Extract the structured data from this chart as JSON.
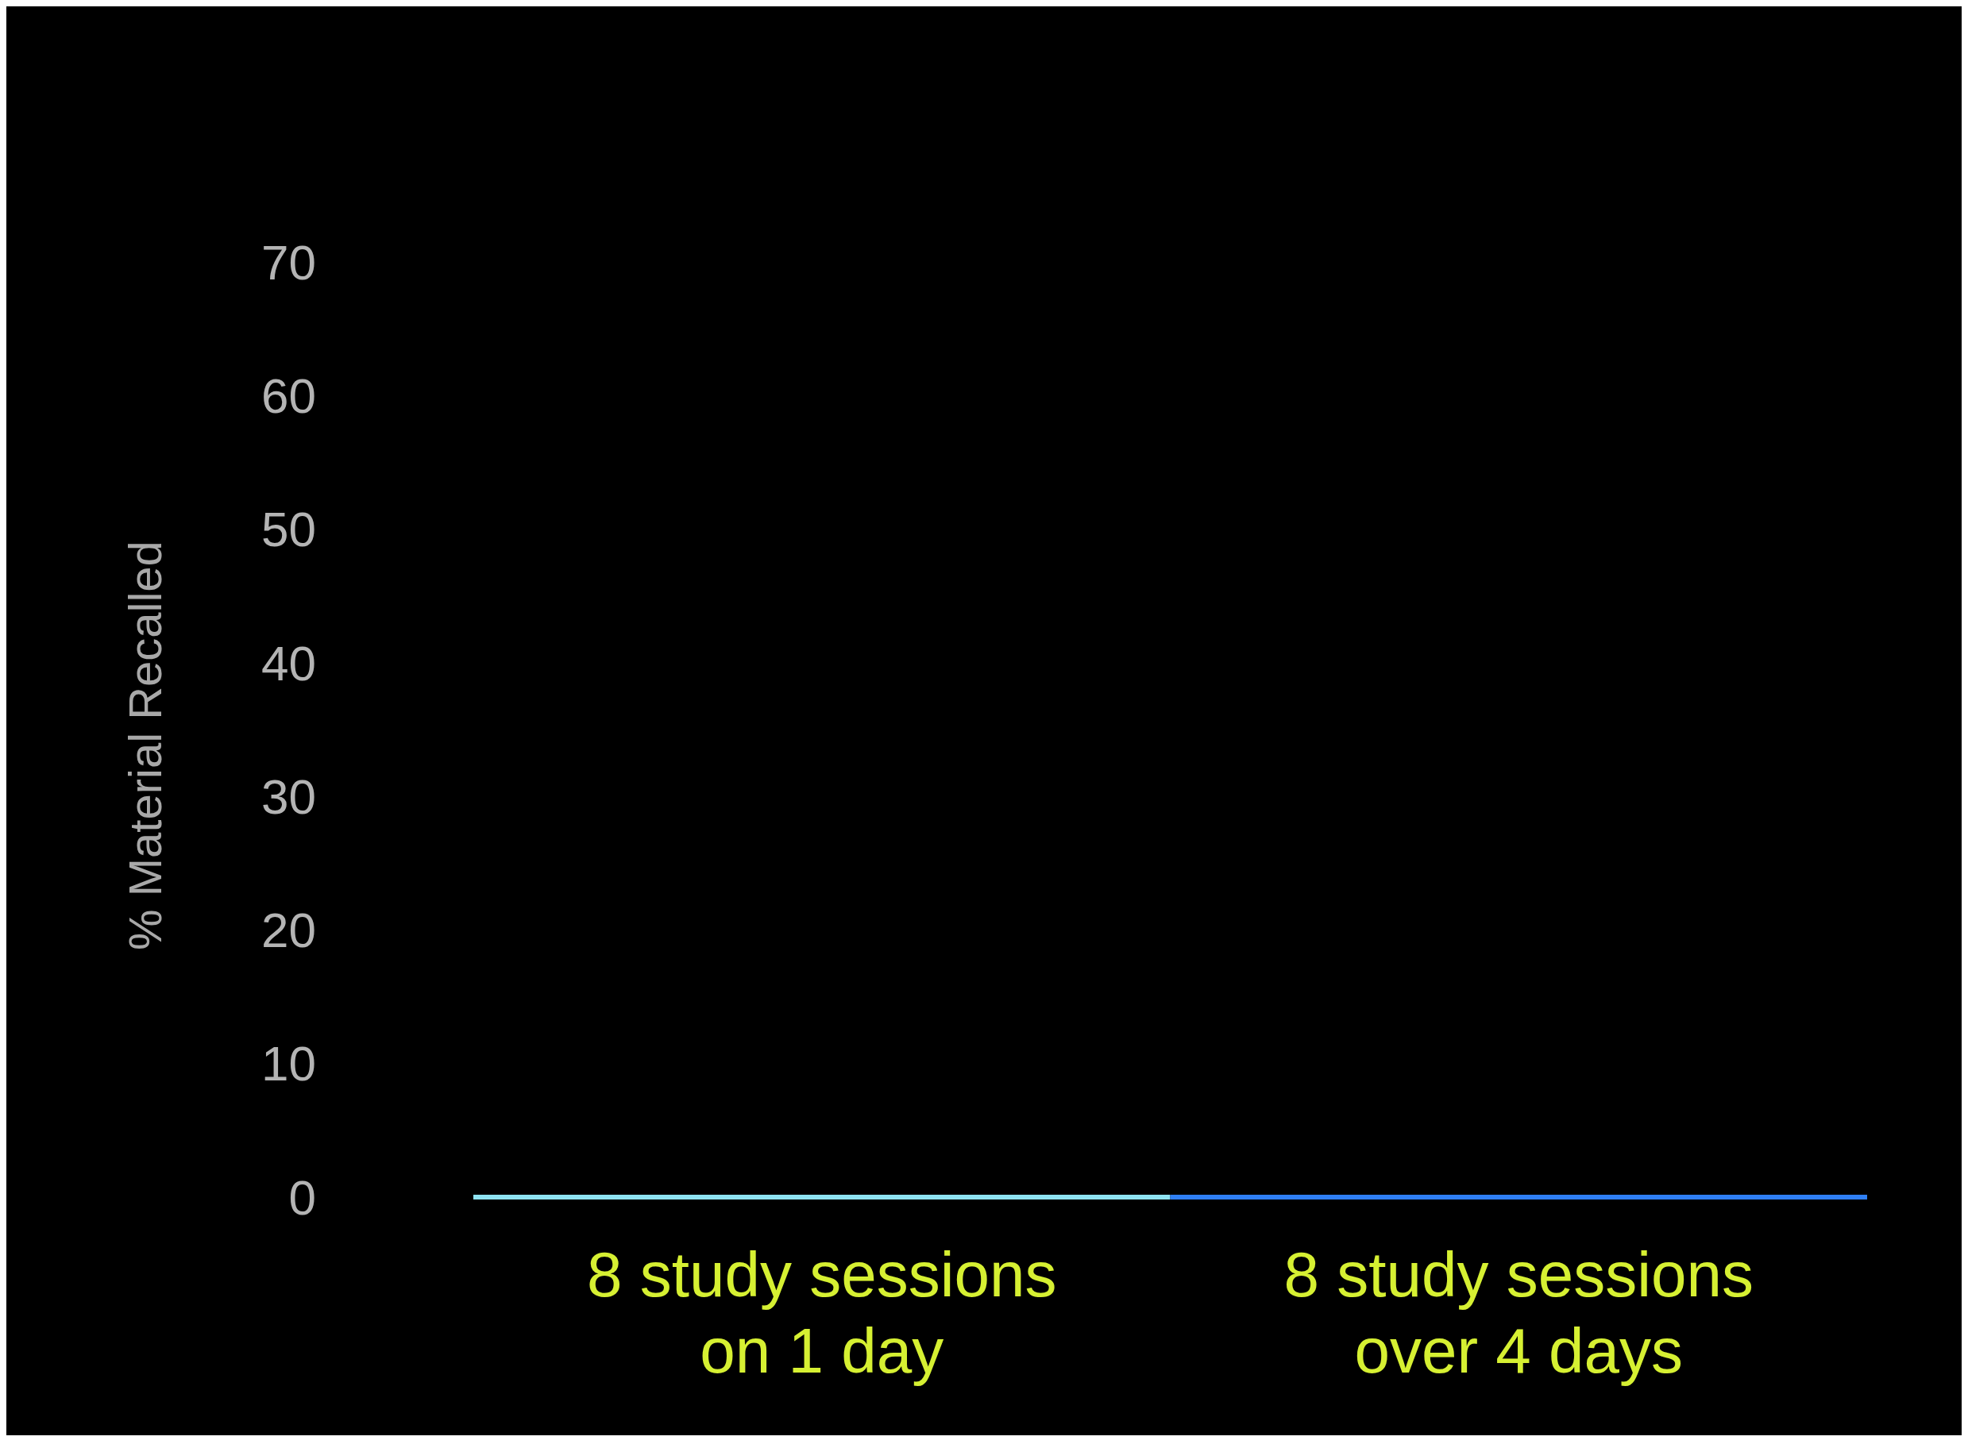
{
  "chart_data": {
    "type": "bar",
    "ylabel": "% Material Recalled",
    "categories": [
      "8 study sessions\non 1 day",
      "8 study sessions\nover 4 days"
    ],
    "values": [
      0,
      0
    ],
    "colors": [
      "#8ee3f2",
      "#2f7ff5"
    ],
    "ylim": [
      0,
      70
    ],
    "yticks": [
      0,
      10,
      20,
      30,
      40,
      50,
      60,
      70
    ],
    "grid": false
  }
}
